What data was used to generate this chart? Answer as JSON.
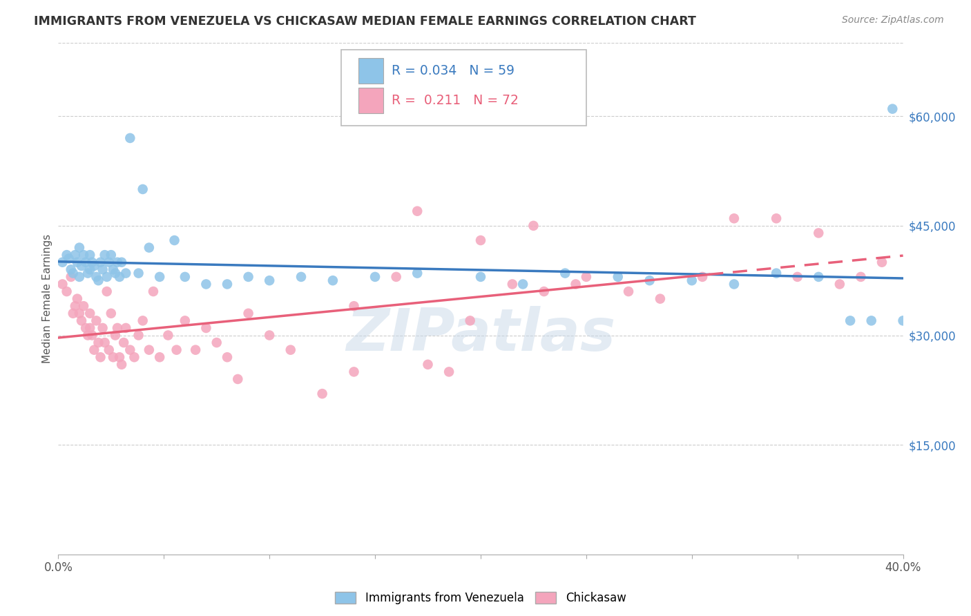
{
  "title": "IMMIGRANTS FROM VENEZUELA VS CHICKASAW MEDIAN FEMALE EARNINGS CORRELATION CHART",
  "source": "Source: ZipAtlas.com",
  "ylabel": "Median Female Earnings",
  "xlim": [
    0.0,
    0.4
  ],
  "ylim": [
    0,
    70000
  ],
  "xtick_positions": [
    0.0,
    0.05,
    0.1,
    0.15,
    0.2,
    0.25,
    0.3,
    0.35,
    0.4
  ],
  "xtick_edge_labels": {
    "0": "0.0%",
    "8": "40.0%"
  },
  "ytick_labels": [
    "$15,000",
    "$30,000",
    "$45,000",
    "$60,000"
  ],
  "ytick_positions": [
    15000,
    30000,
    45000,
    60000
  ],
  "legend_label1": "Immigrants from Venezuela",
  "legend_label2": "Chickasaw",
  "legend_R1": "0.034",
  "legend_N1": "59",
  "legend_R2": "0.211",
  "legend_N2": "72",
  "blue_color": "#8ec4e8",
  "pink_color": "#f4a5bc",
  "blue_line_color": "#3a7abf",
  "pink_line_color": "#e8607a",
  "watermark": "ZIPatlas",
  "blue_x": [
    0.002,
    0.004,
    0.005,
    0.006,
    0.007,
    0.008,
    0.009,
    0.01,
    0.01,
    0.011,
    0.012,
    0.013,
    0.014,
    0.015,
    0.015,
    0.016,
    0.017,
    0.018,
    0.019,
    0.02,
    0.021,
    0.022,
    0.023,
    0.024,
    0.025,
    0.026,
    0.027,
    0.028,
    0.029,
    0.03,
    0.032,
    0.034,
    0.038,
    0.04,
    0.043,
    0.048,
    0.055,
    0.06,
    0.07,
    0.08,
    0.09,
    0.1,
    0.115,
    0.13,
    0.15,
    0.17,
    0.2,
    0.22,
    0.24,
    0.265,
    0.28,
    0.3,
    0.32,
    0.34,
    0.36,
    0.375,
    0.385,
    0.395,
    0.4
  ],
  "blue_y": [
    40000,
    41000,
    40500,
    39000,
    38500,
    41000,
    40000,
    42000,
    38000,
    39500,
    41000,
    40000,
    38500,
    41000,
    39000,
    40000,
    39500,
    38000,
    37500,
    40000,
    39000,
    41000,
    38000,
    40000,
    41000,
    39000,
    38500,
    40000,
    38000,
    40000,
    38500,
    57000,
    38500,
    50000,
    42000,
    38000,
    43000,
    38000,
    37000,
    37000,
    38000,
    37500,
    38000,
    37500,
    38000,
    38500,
    38000,
    37000,
    38500,
    38000,
    37500,
    37500,
    37000,
    38500,
    38000,
    32000,
    32000,
    61000,
    32000
  ],
  "pink_x": [
    0.002,
    0.004,
    0.006,
    0.007,
    0.008,
    0.009,
    0.01,
    0.011,
    0.012,
    0.013,
    0.014,
    0.015,
    0.015,
    0.016,
    0.017,
    0.018,
    0.019,
    0.02,
    0.021,
    0.022,
    0.023,
    0.024,
    0.025,
    0.026,
    0.027,
    0.028,
    0.029,
    0.03,
    0.031,
    0.032,
    0.034,
    0.036,
    0.038,
    0.04,
    0.043,
    0.045,
    0.048,
    0.052,
    0.056,
    0.06,
    0.065,
    0.07,
    0.075,
    0.08,
    0.085,
    0.09,
    0.1,
    0.11,
    0.125,
    0.14,
    0.16,
    0.175,
    0.195,
    0.215,
    0.23,
    0.25,
    0.27,
    0.285,
    0.305,
    0.32,
    0.34,
    0.35,
    0.36,
    0.37,
    0.38,
    0.39,
    0.17,
    0.2,
    0.225,
    0.245,
    0.14,
    0.185
  ],
  "pink_y": [
    37000,
    36000,
    38000,
    33000,
    34000,
    35000,
    33000,
    32000,
    34000,
    31000,
    30000,
    33000,
    31000,
    30000,
    28000,
    32000,
    29000,
    27000,
    31000,
    29000,
    36000,
    28000,
    33000,
    27000,
    30000,
    31000,
    27000,
    26000,
    29000,
    31000,
    28000,
    27000,
    30000,
    32000,
    28000,
    36000,
    27000,
    30000,
    28000,
    32000,
    28000,
    31000,
    29000,
    27000,
    24000,
    33000,
    30000,
    28000,
    22000,
    34000,
    38000,
    26000,
    32000,
    37000,
    36000,
    38000,
    36000,
    35000,
    38000,
    46000,
    46000,
    38000,
    44000,
    37000,
    38000,
    40000,
    47000,
    43000,
    45000,
    37000,
    25000,
    25000
  ]
}
